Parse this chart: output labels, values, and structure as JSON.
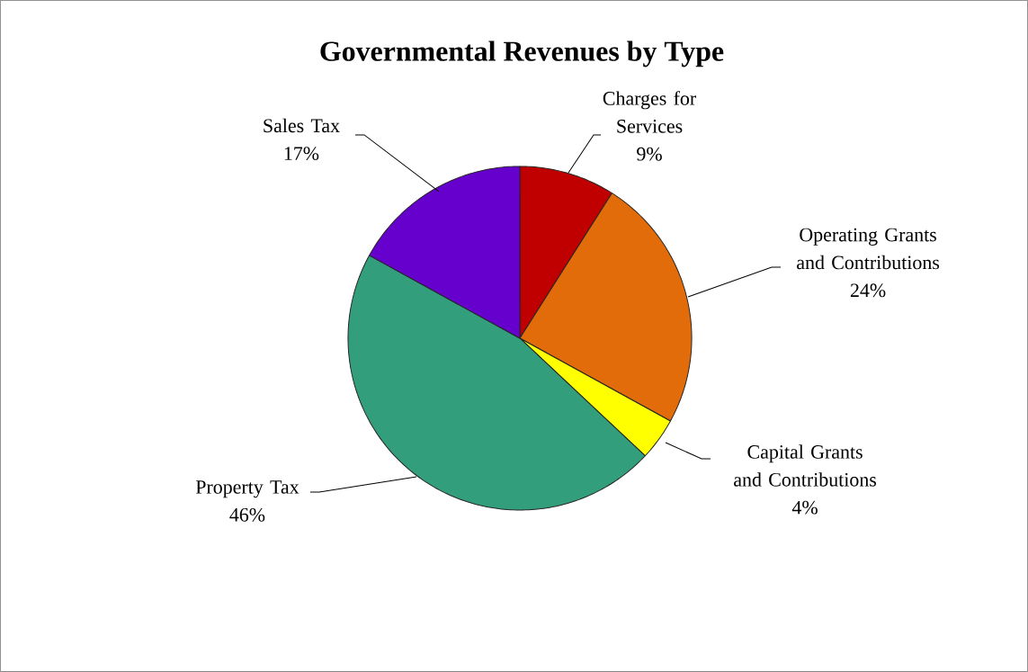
{
  "chart_data": {
    "type": "pie",
    "title": "Governmental Revenues by Type",
    "categories": [
      "Charges for Services",
      "Operating Grants and Contributions",
      "Capital Grants and Contributions",
      "Property Tax",
      "Sales Tax"
    ],
    "values": [
      9,
      24,
      4,
      46,
      17
    ],
    "colors": [
      "#c00000",
      "#e36c0a",
      "#ffff00",
      "#339e7c",
      "#6600cc"
    ],
    "value_labels": [
      "9%",
      "24%",
      "4%",
      "46%",
      "17%"
    ]
  }
}
